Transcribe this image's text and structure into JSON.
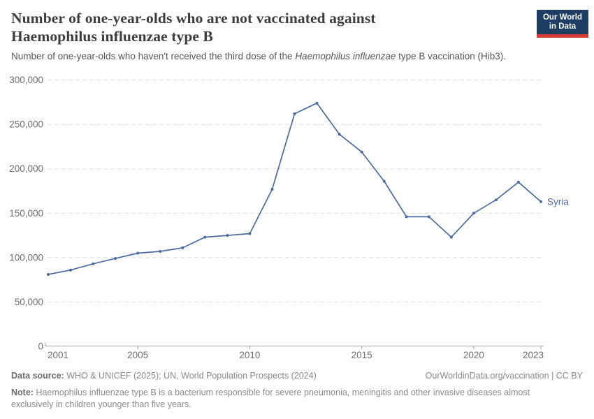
{
  "header": {
    "title_line1": "Number of one-year-olds who are not vaccinated against",
    "title_line2": "Haemophilus influenzae type B",
    "subtitle_prefix": "Number of one-year-olds who haven't received the third dose of the ",
    "subtitle_italic": "Haemophilus influenzae",
    "subtitle_suffix": " type B vaccination (Hib3).",
    "logo_line1": "Our World",
    "logo_line2": "in Data",
    "logo_bg": "#1d3d63",
    "logo_red": "#d63c32"
  },
  "chart_data": {
    "type": "line",
    "title": "Number of one-year-olds who are not vaccinated against Haemophilus influenzae type B",
    "subtitle": "Number of one-year-olds who haven't received the third dose of the Haemophilus influenzae type B vaccination (Hib3).",
    "xlabel": "",
    "ylabel": "",
    "xlim": [
      2001,
      2023
    ],
    "ylim": [
      0,
      300000
    ],
    "grid": "horizontal-dashed",
    "legend_position": "end-of-line-label",
    "x": [
      2001,
      2002,
      2003,
      2004,
      2005,
      2006,
      2007,
      2008,
      2009,
      2010,
      2011,
      2012,
      2013,
      2014,
      2015,
      2016,
      2017,
      2018,
      2019,
      2020,
      2021,
      2022,
      2023
    ],
    "series": [
      {
        "name": "Syria",
        "color": "#4c6a9d",
        "values": [
          81000,
          86000,
          93000,
          99000,
          105000,
          107000,
          111000,
          123000,
          125000,
          127000,
          177000,
          262000,
          274000,
          239000,
          219000,
          186000,
          146000,
          146000,
          123000,
          150000,
          165000,
          185000,
          163000
        ]
      }
    ],
    "x_ticks": [
      {
        "v": 2001,
        "label": "2001"
      },
      {
        "v": 2005,
        "label": "2005"
      },
      {
        "v": 2010,
        "label": "2010"
      },
      {
        "v": 2015,
        "label": "2015"
      },
      {
        "v": 2020,
        "label": "2020"
      },
      {
        "v": 2023,
        "label": "2023"
      }
    ],
    "y_ticks": [
      {
        "v": 0,
        "label": "0"
      },
      {
        "v": 50000,
        "label": "50,000"
      },
      {
        "v": 100000,
        "label": "100,000"
      },
      {
        "v": 150000,
        "label": "150,000"
      },
      {
        "v": 200000,
        "label": "200,000"
      },
      {
        "v": 250000,
        "label": "250,000"
      },
      {
        "v": 300000,
        "label": "300,000"
      }
    ],
    "end_label": "Syria",
    "colors": {
      "line": "#4c6a9d",
      "grid": "#dcdcdc",
      "axis": "#a3a3a3",
      "tick_text": "#6e6e6e"
    }
  },
  "footer": {
    "source_label": "Data source:",
    "source_text": " WHO & UNICEF (2025); UN, World Population Prospects (2024)",
    "link_text": "OurWorldinData.org/vaccination | CC BY",
    "note_label": "Note:",
    "note_line1": " Haemophilus influenzae type B is a bacterium responsible for severe pneumonia, meningitis and other invasive diseases almost",
    "note_line2": "exclusively in children younger than five years."
  }
}
